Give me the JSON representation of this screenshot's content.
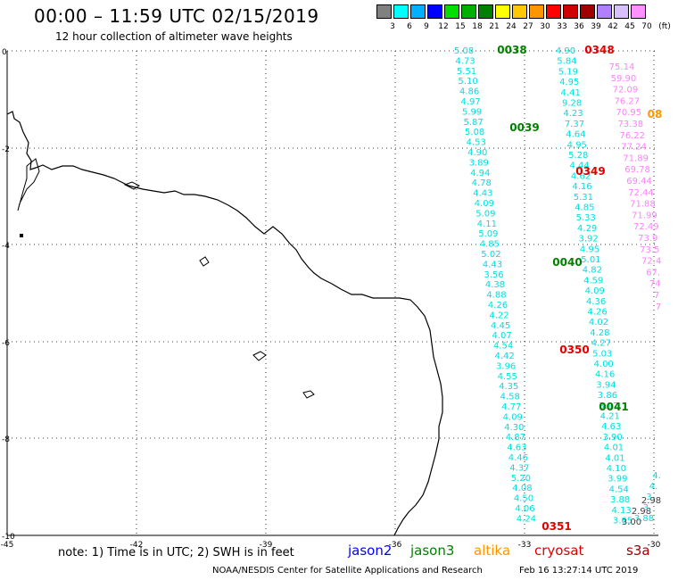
{
  "header": {
    "title": "00:00 – 11:59 UTC 02/15/2019",
    "subtitle": "12 hour collection of altimeter wave heights"
  },
  "legend": {
    "unit": "(ft)",
    "bins": [
      {
        "label": "3",
        "color": "#808080"
      },
      {
        "label": "6",
        "color": "#00ffff"
      },
      {
        "label": "9",
        "color": "#00b0ff"
      },
      {
        "label": "12",
        "color": "#0000ff"
      },
      {
        "label": "15",
        "color": "#00e000"
      },
      {
        "label": "18",
        "color": "#00b000"
      },
      {
        "label": "21",
        "color": "#008000"
      },
      {
        "label": "24",
        "color": "#ffff00"
      },
      {
        "label": "27",
        "color": "#ffc800"
      },
      {
        "label": "30",
        "color": "#ff9600"
      },
      {
        "label": "33",
        "color": "#ff0000"
      },
      {
        "label": "36",
        "color": "#d00000"
      },
      {
        "label": "39",
        "color": "#a00000"
      },
      {
        "label": "42",
        "color": "#b080ff"
      },
      {
        "label": "45",
        "color": "#d8c0ff"
      },
      {
        "label": "70",
        "color": "#ff90ff"
      }
    ]
  },
  "map": {
    "lat_labels": [
      "0",
      "-2",
      "-4",
      "-6",
      "-8",
      "-10"
    ],
    "lon_labels": [
      "-45",
      "-42",
      "-39",
      "-36",
      "-33",
      "-30"
    ],
    "times": [
      {
        "label": "0038",
        "color": "#008000"
      },
      {
        "label": "0039",
        "color": "#008000"
      },
      {
        "label": "0040",
        "color": "#008000"
      },
      {
        "label": "0041",
        "color": "#008000"
      },
      {
        "label": "0348",
        "color": "#e00000"
      },
      {
        "label": "0349",
        "color": "#e00000"
      },
      {
        "label": "0350",
        "color": "#e00000"
      },
      {
        "label": "0351",
        "color": "#e00000"
      },
      {
        "label": "08",
        "color": "#ff9600"
      }
    ],
    "tracks": [
      {
        "name": "track-a",
        "color": "#00e0e0",
        "values": [
          "5.08",
          "4.73",
          "5.51",
          "5.10",
          "4.86",
          "4.97",
          "5.99",
          "5.87",
          "5.08",
          "4.53",
          "4.90",
          "3.89",
          "4.94",
          "4.78",
          "4.43",
          "4.09",
          "5.09",
          "4.11",
          "5.09",
          "4.85",
          "5.02",
          "4.43",
          "3.56",
          "4.38",
          "4.88",
          "4.26",
          "4.22",
          "4.45",
          "4.07",
          "4.54",
          "4.42",
          "3.96",
          "4.55",
          "4.35",
          "4.58",
          "4.77",
          "4.09",
          "4.30",
          "4.87",
          "4.63",
          "4.46",
          "4.37",
          "5.20",
          "4.08",
          "4.50",
          "4.06",
          "4.24"
        ]
      },
      {
        "name": "track-b",
        "color": "#00e0e0",
        "values": [
          "4.90",
          "5.84",
          "5.19",
          "4.95",
          "4.41",
          "9.28",
          "4.23",
          "7.37",
          "4.64",
          "4.95",
          "5.28",
          "4.44",
          "4.62",
          "4.16",
          "5.31",
          "4.85",
          "5.33",
          "4.29",
          "3.92",
          "4.95",
          "5.01",
          "4.82",
          "4.59",
          "4.09",
          "4.36",
          "4.26",
          "4.02",
          "4.28",
          "4.27",
          "5.03",
          "4.00",
          "4.16",
          "3.94",
          "3.86",
          "3.97",
          "4.21",
          "4.63",
          "3.90",
          "4.01",
          "4.01",
          "4.10",
          "3.99",
          "4.54",
          "3.88",
          "4.13",
          "3.65"
        ]
      },
      {
        "name": "track-c",
        "color": "#ff80ff",
        "values": [
          "75.14",
          "59.90",
          "72.09",
          "76.27",
          "70.95",
          "73.38",
          "76.22",
          "77.24",
          "71.89",
          "69.78",
          "69.44",
          "72.44",
          "71.88",
          "71.99",
          "72.49",
          "73.9",
          "73.5",
          "72.4",
          "67.",
          "74",
          "7",
          "7"
        ]
      },
      {
        "name": "track-d",
        "color": "#404040",
        "values": [
          "2.98",
          "2.98",
          "3.00"
        ]
      },
      {
        "name": "track-e",
        "color": "#00e0e0",
        "values": [
          "4.",
          "4.",
          "3.",
          "3.",
          "3.88"
        ]
      }
    ]
  },
  "footer": {
    "note": "note:  1) Time is in UTC;  2) SWH is in feet",
    "satellites": [
      {
        "name": "jason2",
        "color": "#0000ff"
      },
      {
        "name": "jason3",
        "color": "#008000"
      },
      {
        "name": "altika",
        "color": "#ff9600"
      },
      {
        "name": "cryosat",
        "color": "#e00000"
      },
      {
        "name": "s3a",
        "color": "#a00000"
      }
    ],
    "credit": "NOAA/NESDIS Center for Satellite Applications and Research",
    "timestamp": "Feb 16 13:27:14 UTC 2019"
  }
}
